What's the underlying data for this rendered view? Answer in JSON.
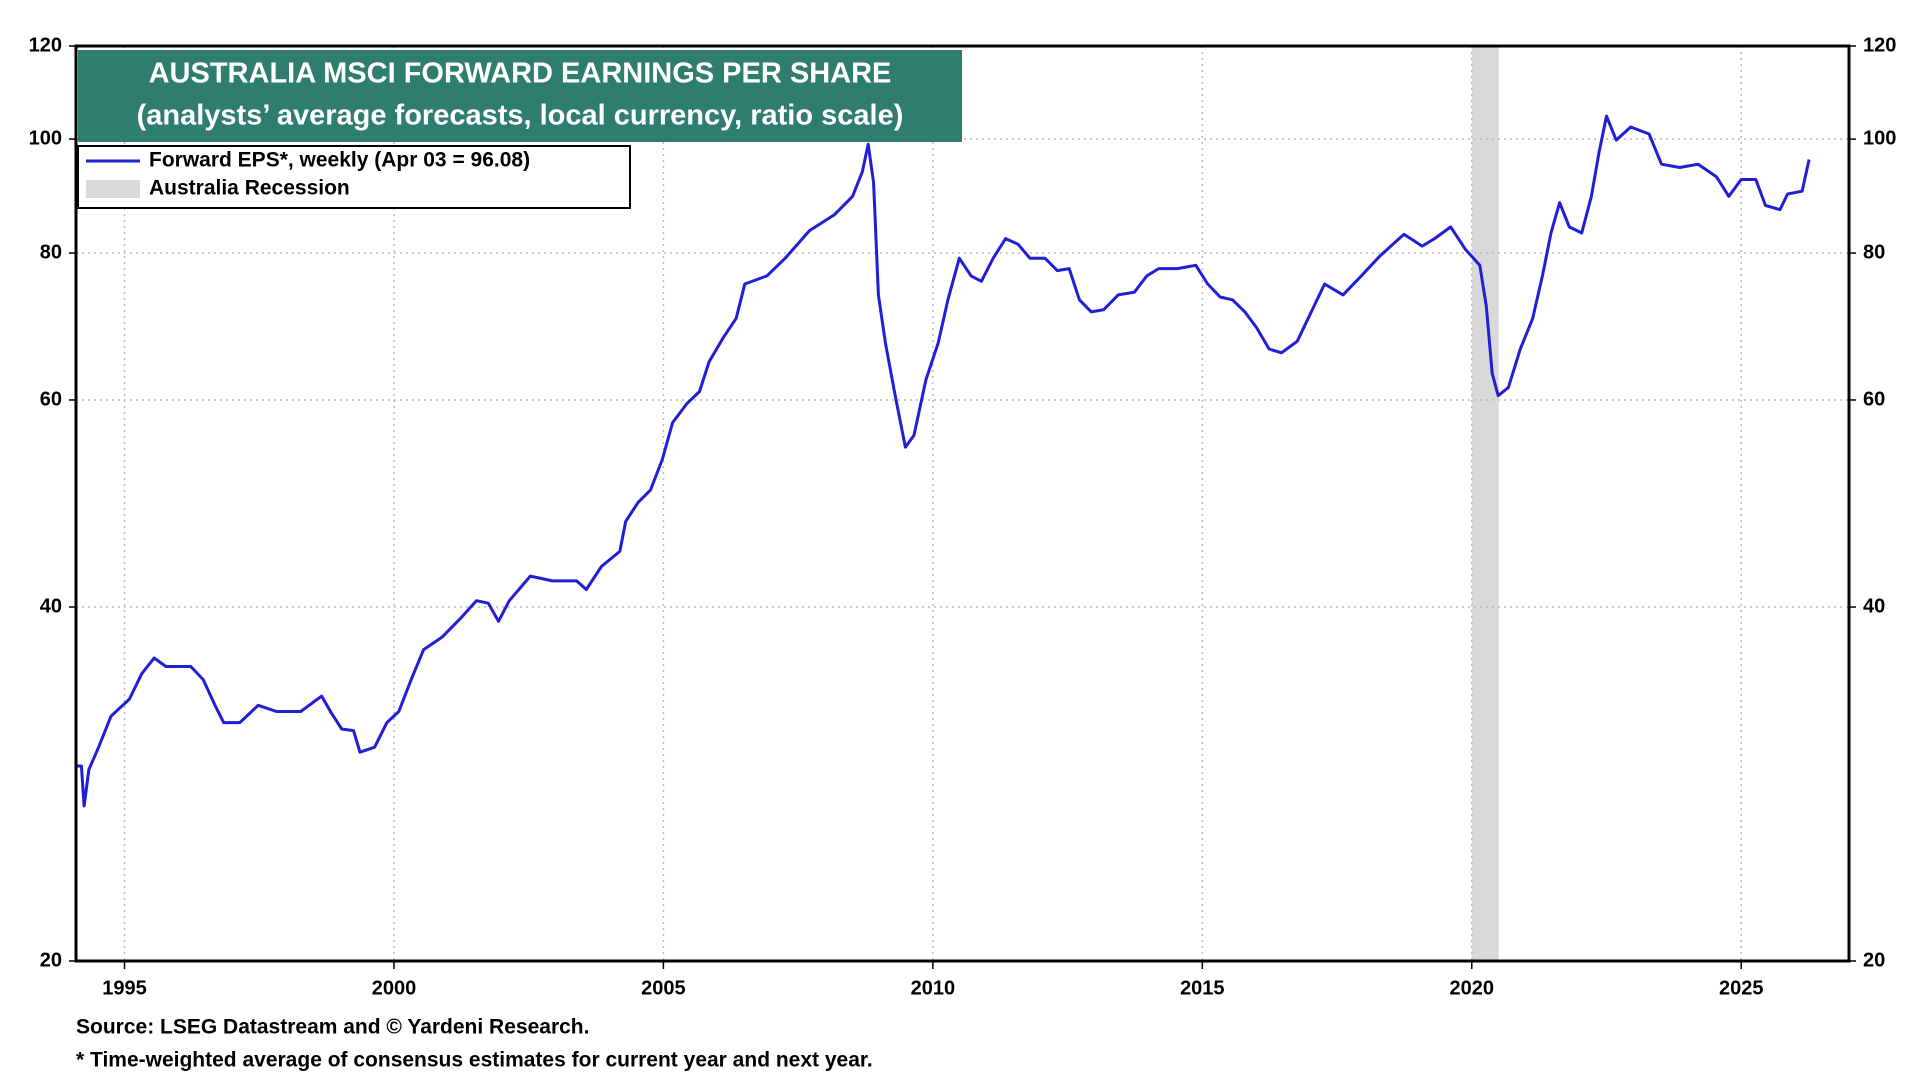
{
  "chart_data": {
    "type": "line",
    "title": "AUSTRALIA MSCI FORWARD EARNINGS PER SHARE",
    "subtitle": "(analysts’ average forecasts, local currency, ratio scale)",
    "source": "Source: LSEG Datastream and © Yardeni Research.",
    "note": "* Time-weighted average of consensus estimates for current year and next year.",
    "yscale": "log",
    "grid": true,
    "legend": "upper left",
    "xlim": [
      1994.1,
      2027.0
    ],
    "xticks": [
      1995,
      2000,
      2005,
      2010,
      2015,
      2020,
      2025
    ],
    "ylim": [
      20,
      120
    ],
    "yticks": [
      20,
      40,
      60,
      80,
      100,
      120
    ],
    "recessions": [
      {
        "name": "Australia Recession",
        "start": 2020.0,
        "end": 2020.5,
        "color": "#d9d9d9"
      }
    ],
    "x": [
      1994.1,
      1994.2,
      1994.25,
      1994.34,
      1994.52,
      1994.75,
      1995.09,
      1995.32,
      1995.55,
      1995.77,
      1996.23,
      1996.46,
      1996.68,
      1996.84,
      1997.14,
      1997.48,
      1997.82,
      1998.27,
      1998.66,
      1998.84,
      1999.03,
      1999.25,
      1999.37,
      1999.64,
      1999.87,
      2000.09,
      2000.32,
      2000.55,
      2000.89,
      2001.23,
      2001.53,
      2001.75,
      2001.94,
      2002.14,
      2002.53,
      2002.94,
      2003.39,
      2003.57,
      2003.85,
      2004.19,
      2004.3,
      2004.53,
      2004.76,
      2004.98,
      2005.17,
      2005.44,
      2005.67,
      2005.85,
      2006.12,
      2006.35,
      2006.51,
      2006.92,
      2007.26,
      2007.71,
      2008.17,
      2008.51,
      2008.69,
      2008.8,
      2008.9,
      2008.99,
      2009.12,
      2009.31,
      2009.49,
      2009.65,
      2009.87,
      2010.1,
      2010.28,
      2010.49,
      2010.71,
      2010.9,
      2011.12,
      2011.35,
      2011.58,
      2011.8,
      2012.08,
      2012.31,
      2012.53,
      2012.72,
      2012.94,
      2013.17,
      2013.44,
      2013.74,
      2013.97,
      2014.19,
      2014.54,
      2014.88,
      2015.1,
      2015.33,
      2015.56,
      2015.79,
      2016.01,
      2016.24,
      2016.47,
      2016.76,
      2016.99,
      2017.27,
      2017.61,
      2017.95,
      2018.29,
      2018.74,
      2019.08,
      2019.31,
      2019.61,
      2019.88,
      2020.15,
      2020.27,
      2020.38,
      2020.49,
      2020.68,
      2020.9,
      2021.13,
      2021.31,
      2021.47,
      2021.63,
      2021.81,
      2022.04,
      2022.22,
      2022.36,
      2022.5,
      2022.68,
      2022.95,
      2023.29,
      2023.52,
      2023.86,
      2024.2,
      2024.54,
      2024.77,
      2025.0,
      2025.27,
      2025.45,
      2025.72,
      2025.86,
      2026.13,
      2026.26
    ],
    "series": [
      {
        "name": "Forward EPS*, weekly (Apr 03 = 96.08)",
        "color": "#1f1fd6",
        "values": [
          29.3,
          29.3,
          27.1,
          29.1,
          30.4,
          32.3,
          33.4,
          35.1,
          36.2,
          35.6,
          35.6,
          34.7,
          33.0,
          31.9,
          31.9,
          33.0,
          32.6,
          32.6,
          33.6,
          32.5,
          31.5,
          31.4,
          30.1,
          30.4,
          31.9,
          32.6,
          34.7,
          36.8,
          37.7,
          39.1,
          40.5,
          40.3,
          38.9,
          40.5,
          42.5,
          42.1,
          42.1,
          41.4,
          43.3,
          44.6,
          47.3,
          49.1,
          50.3,
          53.4,
          57.4,
          59.6,
          61.0,
          64.7,
          67.9,
          70.4,
          75.3,
          76.5,
          79.2,
          83.6,
          86.2,
          89.4,
          93.8,
          99.0,
          91.8,
          73.7,
          67.1,
          60.2,
          54.7,
          56.0,
          62.4,
          67.1,
          73.0,
          79.2,
          76.5,
          75.7,
          79.2,
          82.3,
          81.4,
          79.2,
          79.2,
          77.3,
          77.6,
          73.0,
          71.3,
          71.6,
          73.7,
          74.1,
          76.5,
          77.6,
          77.6,
          78.1,
          75.3,
          73.4,
          73.0,
          71.3,
          69.1,
          66.3,
          65.8,
          67.3,
          70.8,
          75.3,
          73.7,
          76.5,
          79.5,
          83.0,
          81.1,
          82.3,
          84.2,
          80.6,
          78.1,
          72.1,
          63.2,
          60.5,
          61.5,
          66.3,
          70.4,
          76.5,
          83.2,
          88.3,
          84.2,
          83.2,
          89.4,
          97.3,
          104.6,
          99.8,
          102.4,
          101.0,
          95.2,
          94.6,
          95.2,
          92.9,
          89.4,
          92.4,
          92.4,
          87.8,
          87.1,
          89.8,
          90.3,
          96.08
        ]
      }
    ]
  }
}
